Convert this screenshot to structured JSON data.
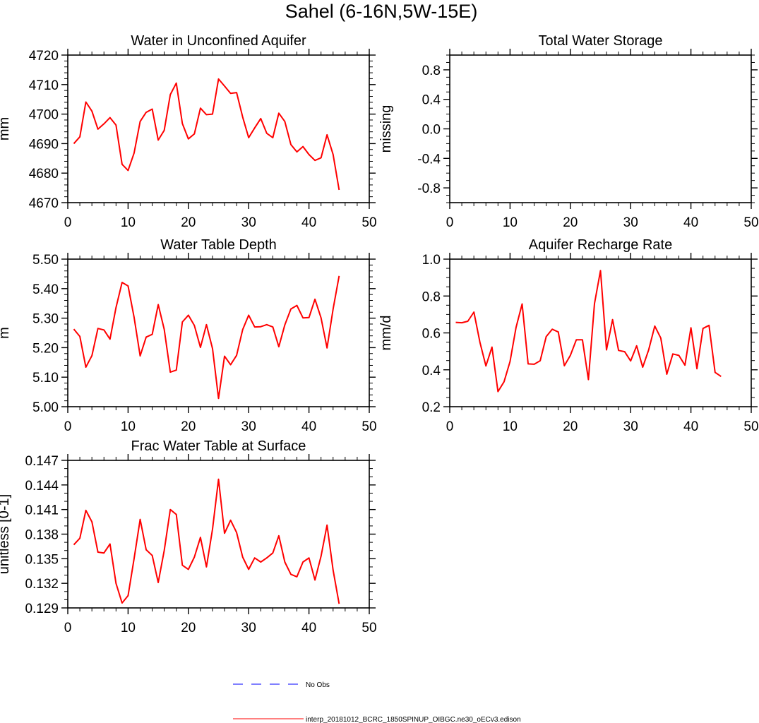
{
  "figure": {
    "title": "Sahel (6-16N,5W-15E)"
  },
  "colors": {
    "series": "#ff0000",
    "obs": "#0000ff",
    "axis": "#000000"
  },
  "chart_data": [
    {
      "type": "line",
      "title": "Water in Unconfined Aquifer",
      "ylabel": "mm",
      "xlim": [
        0,
        50
      ],
      "ylim": [
        4670,
        4720
      ],
      "xticks": [
        0,
        10,
        20,
        30,
        40,
        50
      ],
      "xtick_labels": [
        "0",
        "10",
        "20",
        "30",
        "40",
        "50"
      ],
      "yticks": [
        4670,
        4680,
        4690,
        4700,
        4710,
        4720
      ],
      "ytick_labels": [
        "4670",
        "4680",
        "4690",
        "4700",
        "4710",
        "4720"
      ],
      "yminor": 4,
      "grid": false,
      "series": [
        {
          "name": "interp_20181012_BCRC_1850SPINUP_OIBGC.ne30_oECv3.edison",
          "x": [
            1,
            2,
            3,
            4,
            5,
            6,
            7,
            8,
            9,
            10,
            11,
            12,
            13,
            14,
            15,
            16,
            17,
            18,
            19,
            20,
            21,
            22,
            23,
            24,
            25,
            26,
            27,
            28,
            29,
            30,
            31,
            32,
            33,
            34,
            35,
            36,
            37,
            38,
            39,
            40,
            41,
            42,
            43,
            44,
            45
          ],
          "values": [
            4690.0,
            4692.3,
            4704.1,
            4701.0,
            4694.9,
            4696.7,
            4698.8,
            4696.3,
            4683.0,
            4680.9,
            4686.8,
            4697.5,
            4700.6,
            4701.7,
            4691.2,
            4694.5,
            4706.6,
            4710.5,
            4696.8,
            4691.6,
            4693.3,
            4702.0,
            4699.8,
            4700.0,
            4711.9,
            4709.5,
            4707.0,
            4707.3,
            4699.0,
            4692.0,
            4695.3,
            4698.5,
            4693.5,
            4692.0,
            4700.3,
            4697.5,
            4689.7,
            4687.2,
            4689.0,
            4686.3,
            4684.3,
            4685.2,
            4693.0,
            4686.3,
            4674.3
          ]
        }
      ]
    },
    {
      "type": "line",
      "title": "Total Water Storage",
      "ylabel": "missing",
      "xlim": [
        0,
        50
      ],
      "ylim": [
        -1,
        1
      ],
      "xticks": [
        0,
        10,
        20,
        30,
        40,
        50
      ],
      "xtick_labels": [
        "0",
        "10",
        "20",
        "30",
        "40",
        "50"
      ],
      "yticks": [
        -0.8,
        -0.4,
        0.0,
        0.4,
        0.8
      ],
      "ytick_labels": [
        "-0.8",
        "-0.4",
        "0.0",
        "0.4",
        "0.8"
      ],
      "yminor": 3,
      "grid": false,
      "series": []
    },
    {
      "type": "line",
      "title": "Water Table Depth",
      "ylabel": "m",
      "xlim": [
        0,
        50
      ],
      "ylim": [
        5.0,
        5.5
      ],
      "xticks": [
        0,
        10,
        20,
        30,
        40,
        50
      ],
      "xtick_labels": [
        "0",
        "10",
        "20",
        "30",
        "40",
        "50"
      ],
      "yticks": [
        5.0,
        5.1,
        5.2,
        5.3,
        5.4,
        5.5
      ],
      "ytick_labels": [
        "5.00",
        "5.10",
        "5.20",
        "5.30",
        "5.40",
        "5.50"
      ],
      "yminor": 4,
      "grid": false,
      "series": [
        {
          "name": "interp_20181012_BCRC_1850SPINUP_OIBGC.ne30_oECv3.edison",
          "x": [
            1,
            2,
            3,
            4,
            5,
            6,
            7,
            8,
            9,
            10,
            11,
            12,
            13,
            14,
            15,
            16,
            17,
            18,
            19,
            20,
            21,
            22,
            23,
            24,
            25,
            26,
            27,
            28,
            29,
            30,
            31,
            32,
            33,
            34,
            35,
            36,
            37,
            38,
            39,
            40,
            41,
            42,
            43,
            44,
            45
          ],
          "values": [
            5.263,
            5.238,
            5.134,
            5.173,
            5.265,
            5.26,
            5.229,
            5.336,
            5.421,
            5.409,
            5.303,
            5.172,
            5.236,
            5.245,
            5.346,
            5.262,
            5.117,
            5.124,
            5.287,
            5.31,
            5.275,
            5.201,
            5.278,
            5.197,
            5.028,
            5.171,
            5.142,
            5.174,
            5.261,
            5.31,
            5.27,
            5.271,
            5.278,
            5.27,
            5.203,
            5.277,
            5.331,
            5.343,
            5.301,
            5.302,
            5.364,
            5.301,
            5.199,
            5.331,
            5.443
          ]
        }
      ]
    },
    {
      "type": "line",
      "title": "Aquifer Recharge Rate",
      "ylabel": "mm/d",
      "xlim": [
        0,
        50
      ],
      "ylim": [
        0.2,
        1.0
      ],
      "xticks": [
        0,
        10,
        20,
        30,
        40,
        50
      ],
      "xtick_labels": [
        "0",
        "10",
        "20",
        "30",
        "40",
        "50"
      ],
      "yticks": [
        0.2,
        0.4,
        0.6,
        0.8,
        1.0
      ],
      "ytick_labels": [
        "0.2",
        "0.4",
        "0.6",
        "0.8",
        "1.0"
      ],
      "yminor": 3,
      "grid": false,
      "series": [
        {
          "name": "interp_20181012_BCRC_1850SPINUP_OIBGC.ne30_oECv3.edison",
          "x": [
            1,
            2,
            3,
            4,
            5,
            6,
            7,
            8,
            9,
            10,
            11,
            12,
            13,
            14,
            15,
            16,
            17,
            18,
            19,
            20,
            21,
            22,
            23,
            24,
            25,
            26,
            27,
            28,
            29,
            30,
            31,
            32,
            33,
            34,
            35,
            36,
            37,
            38,
            39,
            40,
            41,
            42,
            43,
            44,
            45
          ],
          "values": [
            0.657,
            0.655,
            0.663,
            0.713,
            0.55,
            0.421,
            0.523,
            0.282,
            0.335,
            0.445,
            0.63,
            0.757,
            0.432,
            0.43,
            0.449,
            0.58,
            0.62,
            0.605,
            0.422,
            0.478,
            0.563,
            0.563,
            0.347,
            0.759,
            0.938,
            0.508,
            0.672,
            0.505,
            0.498,
            0.448,
            0.53,
            0.414,
            0.509,
            0.637,
            0.572,
            0.376,
            0.486,
            0.478,
            0.425,
            0.628,
            0.406,
            0.624,
            0.641,
            0.386,
            0.364
          ]
        }
      ]
    },
    {
      "type": "line",
      "title": "Frac Water Table at Surface",
      "ylabel": "unitless [0-1]",
      "xlim": [
        0,
        50
      ],
      "ylim": [
        0.129,
        0.147
      ],
      "xticks": [
        0,
        10,
        20,
        30,
        40,
        50
      ],
      "xtick_labels": [
        "0",
        "10",
        "20",
        "30",
        "40",
        "50"
      ],
      "yticks": [
        0.129,
        0.132,
        0.135,
        0.138,
        0.141,
        0.144,
        0.147
      ],
      "ytick_labels": [
        "0.129",
        "0.132",
        "0.135",
        "0.138",
        "0.141",
        "0.144",
        "0.147"
      ],
      "yminor": 2,
      "grid": false,
      "series": [
        {
          "name": "interp_20181012_BCRC_1850SPINUP_OIBGC.ne30_oECv3.edison",
          "x": [
            1,
            2,
            3,
            4,
            5,
            6,
            7,
            8,
            9,
            10,
            11,
            12,
            13,
            14,
            15,
            16,
            17,
            18,
            19,
            20,
            21,
            22,
            23,
            24,
            25,
            26,
            27,
            28,
            29,
            30,
            31,
            32,
            33,
            34,
            35,
            36,
            37,
            38,
            39,
            40,
            41,
            42,
            43,
            44,
            45
          ],
          "values": [
            0.1367,
            0.1375,
            0.1409,
            0.1395,
            0.1358,
            0.1357,
            0.1368,
            0.132,
            0.1296,
            0.1305,
            0.135,
            0.1398,
            0.1361,
            0.1354,
            0.1321,
            0.136,
            0.141,
            0.1404,
            0.1342,
            0.1337,
            0.1352,
            0.1376,
            0.134,
            0.1386,
            0.1447,
            0.1381,
            0.1397,
            0.1382,
            0.1352,
            0.1337,
            0.1351,
            0.1346,
            0.1351,
            0.1357,
            0.1378,
            0.1346,
            0.1331,
            0.1328,
            0.1346,
            0.1351,
            0.1324,
            0.1353,
            0.1391,
            0.1336,
            0.1295
          ]
        }
      ]
    }
  ],
  "legend": {
    "placement": "bottom-center",
    "entries": [
      {
        "label": "No Obs",
        "color": "#0000ff",
        "style": "dashed"
      },
      {
        "label": "interp_20181012_BCRC_1850SPINUP_OIBGC.ne30_oECv3.edison",
        "color": "#ff0000",
        "style": "solid"
      }
    ]
  }
}
